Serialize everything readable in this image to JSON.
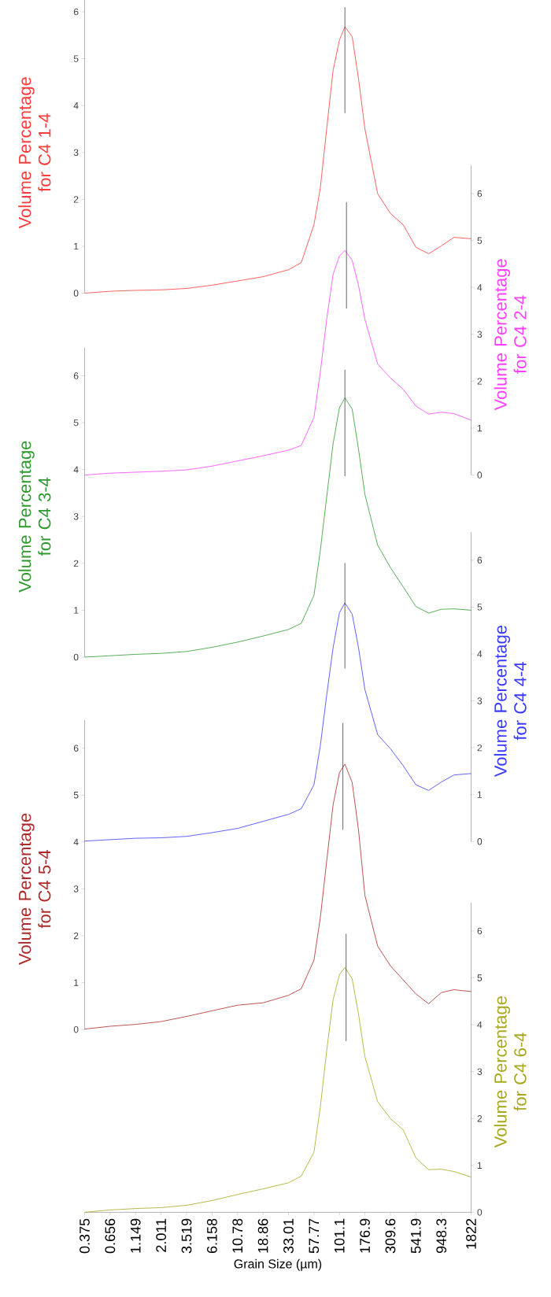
{
  "chart_data": [
    {
      "type": "line",
      "log": "x",
      "tick_labels": "y",
      "xlim": [
        0.375,
        1822
      ],
      "ylim": [
        0,
        6.6
      ],
      "yticks": [
        0,
        1,
        2,
        3,
        4,
        5,
        6
      ],
      "ylabel": "Volume Percentage for C4 1-4",
      "x": [
        0.375,
        0.656,
        1.149,
        2.011,
        3.519,
        6.158,
        10.78,
        18.86,
        33.01,
        43.67,
        57.77,
        66.4,
        76.4,
        87.9,
        101.1,
        114,
        133.7,
        153.8,
        176.9,
        234,
        309.6,
        409.6,
        541.9,
        717,
        948.3,
        1254,
        1822
      ],
      "series": [
        {
          "color": "#ff3b3b",
          "values": [
            0,
            0.04,
            0.06,
            0.07,
            0.1,
            0.17,
            0.26,
            0.35,
            0.5,
            0.65,
            1.46,
            2.24,
            3.5,
            4.75,
            5.4,
            5.68,
            5.47,
            4.57,
            3.5,
            2.12,
            1.7,
            1.46,
            0.98,
            0.84,
            1.01,
            1.19,
            1.16
          ]
        },
        {
          "type": "line",
          "color": "#404040",
          "x": [
            114,
            114
          ],
          "values": [
            3.84,
            6.1
          ]
        }
      ]
    },
    {
      "type": "line",
      "log": "x",
      "tick_labels": "y",
      "xlim": [
        0.375,
        1822
      ],
      "y2lim": [
        0,
        6.6
      ],
      "y2ticks": [
        0,
        1,
        2,
        3,
        4,
        5,
        6
      ],
      "y2label": "Volume Percentage for C4 2-4",
      "x": [
        0.375,
        0.656,
        1.149,
        2.011,
        3.519,
        6.158,
        10.78,
        18.86,
        33.01,
        43.67,
        57.77,
        66.4,
        76.4,
        87.9,
        101.1,
        114,
        133.7,
        153.8,
        176.9,
        234,
        309.6,
        409.6,
        541.9,
        717,
        948.3,
        1254,
        1822
      ],
      "series": [
        {
          "axis": "y2",
          "color": "#ff40ff",
          "values": [
            0,
            0.04,
            0.06,
            0.08,
            0.11,
            0.19,
            0.3,
            0.41,
            0.53,
            0.63,
            1.23,
            2.19,
            3.32,
            4.28,
            4.67,
            4.79,
            4.58,
            4.04,
            3.32,
            2.37,
            2.07,
            1.83,
            1.47,
            1.3,
            1.34,
            1.31,
            1.17
          ]
        },
        {
          "axis": "y2",
          "type": "line",
          "color": "#404040",
          "x": [
            118,
            118
          ],
          "values": [
            3.55,
            5.82
          ]
        }
      ]
    },
    {
      "type": "line",
      "log": "x",
      "tick_labels": "y",
      "xlim": [
        0.375,
        1822
      ],
      "ylim": [
        0,
        6.6
      ],
      "yticks": [
        0,
        1,
        2,
        3,
        4,
        5,
        6
      ],
      "ylabel": "Volume Percentage for C4 3-4",
      "x": [
        0.375,
        0.656,
        1.149,
        2.011,
        3.519,
        6.158,
        10.78,
        18.86,
        33.01,
        43.67,
        57.77,
        66.4,
        76.4,
        87.9,
        101.1,
        114,
        133.7,
        153.8,
        176.9,
        234,
        309.6,
        409.6,
        541.9,
        717,
        948.3,
        1254,
        1822
      ],
      "series": [
        {
          "color": "#2e9a2e",
          "values": [
            0,
            0.03,
            0.06,
            0.08,
            0.12,
            0.21,
            0.32,
            0.45,
            0.59,
            0.72,
            1.32,
            2.27,
            3.41,
            4.55,
            5.32,
            5.53,
            5.29,
            4.43,
            3.47,
            2.39,
            1.91,
            1.5,
            1.08,
            0.94,
            1.02,
            1.03,
            1.0
          ]
        },
        {
          "type": "line",
          "color": "#404040",
          "x": [
            114,
            114
          ],
          "values": [
            3.86,
            6.13
          ]
        }
      ]
    },
    {
      "type": "line",
      "log": "x",
      "tick_labels": "y",
      "xlim": [
        0.375,
        1822
      ],
      "y2lim": [
        0,
        6.6
      ],
      "y2ticks": [
        0,
        1,
        2,
        3,
        4,
        5,
        6
      ],
      "y2label": "Volume Percentage for C4 4-4",
      "x": [
        0.375,
        0.656,
        1.149,
        2.011,
        3.519,
        6.158,
        10.78,
        18.86,
        33.01,
        43.67,
        57.77,
        66.4,
        76.4,
        87.9,
        101.1,
        114,
        133.7,
        153.8,
        176.9,
        234,
        309.6,
        409.6,
        541.9,
        717,
        948.3,
        1254,
        1822
      ],
      "series": [
        {
          "axis": "y2",
          "color": "#3b3bff",
          "values": [
            0.01,
            0.04,
            0.07,
            0.08,
            0.11,
            0.19,
            0.28,
            0.43,
            0.58,
            0.7,
            1.21,
            2.04,
            3.12,
            4.13,
            4.88,
            5.09,
            4.85,
            4.13,
            3.24,
            2.28,
            1.98,
            1.62,
            1.21,
            1.09,
            1.27,
            1.42,
            1.45
          ]
        },
        {
          "axis": "y2",
          "type": "line",
          "color": "#404040",
          "x": [
            114,
            114
          ],
          "values": [
            3.69,
            5.94
          ]
        }
      ]
    },
    {
      "type": "line",
      "log": "x",
      "tick_labels": "y",
      "xlim": [
        0.375,
        1822
      ],
      "ylim": [
        0,
        6.6
      ],
      "yticks": [
        0,
        1,
        2,
        3,
        4,
        5,
        6
      ],
      "ylabel": "Volume Percentage for C4 5-4",
      "x": [
        0.375,
        0.656,
        1.149,
        2.011,
        3.519,
        6.158,
        10.78,
        18.86,
        33.01,
        43.67,
        57.77,
        66.4,
        76.4,
        87.9,
        101.1,
        114,
        133.7,
        153.8,
        176.9,
        234,
        309.6,
        409.6,
        541.9,
        717,
        948.3,
        1254,
        1822
      ],
      "series": [
        {
          "color": "#b02a2a",
          "values": [
            0.01,
            0.07,
            0.11,
            0.17,
            0.28,
            0.4,
            0.52,
            0.57,
            0.73,
            0.87,
            1.48,
            2.38,
            3.59,
            4.79,
            5.48,
            5.66,
            5.27,
            4.25,
            2.86,
            1.78,
            1.36,
            1.06,
            0.76,
            0.55,
            0.79,
            0.85,
            0.81
          ]
        },
        {
          "type": "line",
          "color": "#404040",
          "x": [
            109,
            109
          ],
          "values": [
            4.26,
            6.54
          ]
        }
      ]
    },
    {
      "type": "line",
      "log": "x",
      "xlim": [
        0.375,
        1822
      ],
      "y2lim": [
        0,
        6.6
      ],
      "y2ticks": [
        0,
        1,
        2,
        3,
        4,
        5,
        6
      ],
      "y2label": "Volume Percentage for C4 6-4",
      "xlabel": "Grain Size (µm)",
      "xticks": [
        0.375,
        0.656,
        1.149,
        2.011,
        3.519,
        6.158,
        10.78,
        18.86,
        33.01,
        57.77,
        101.1,
        176.9,
        309.6,
        541.9,
        948.3,
        1822
      ],
      "x": [
        0.375,
        0.656,
        1.149,
        2.011,
        3.519,
        6.158,
        10.78,
        18.86,
        33.01,
        43.67,
        57.77,
        66.4,
        76.4,
        87.9,
        101.1,
        114,
        133.7,
        153.8,
        176.9,
        234,
        309.6,
        409.6,
        541.9,
        717,
        948.3,
        1254,
        1822
      ],
      "series": [
        {
          "axis": "y2",
          "color": "#a8a820",
          "values": [
            0,
            0.05,
            0.08,
            0.1,
            0.15,
            0.25,
            0.38,
            0.5,
            0.63,
            0.77,
            1.28,
            2.24,
            3.44,
            4.53,
            5.07,
            5.22,
            4.98,
            4.22,
            3.32,
            2.36,
            2.0,
            1.76,
            1.16,
            0.91,
            0.92,
            0.87,
            0.75
          ]
        },
        {
          "axis": "y2",
          "type": "line",
          "color": "#404040",
          "x": [
            117,
            117
          ],
          "values": [
            3.65,
            5.94
          ]
        }
      ]
    }
  ]
}
